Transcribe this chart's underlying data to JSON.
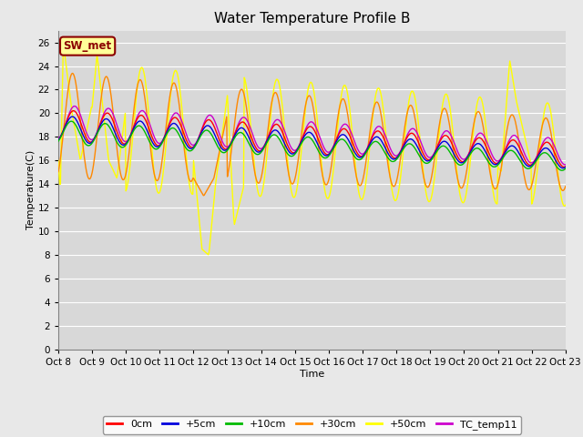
{
  "title": "Water Temperature Profile B",
  "xlabel": "Time",
  "ylabel": "Temperature(C)",
  "ylim": [
    0,
    27
  ],
  "yticks": [
    0,
    2,
    4,
    6,
    8,
    10,
    12,
    14,
    16,
    18,
    20,
    22,
    24,
    26
  ],
  "background_color": "#e8e8e8",
  "plot_bg_color": "#d8d8d8",
  "legend_label": "SW_met",
  "series_colors": {
    "0cm": "#ff0000",
    "+5cm": "#0000dd",
    "+10cm": "#00bb00",
    "+30cm": "#ff8800",
    "+50cm": "#ffff00",
    "TC_temp11": "#cc00cc"
  },
  "n_days": 15,
  "x_tick_labels": [
    "Oct 8",
    "Oct 9",
    "Oct 10",
    "Oct 11",
    "Oct 12",
    "Oct 13",
    "Oct 14",
    "Oct 15",
    "Oct 16",
    "Oct 17",
    "Oct 18",
    "Oct 19",
    "Oct 20",
    "Oct 21",
    "Oct 22",
    "Oct 23"
  ],
  "title_fontsize": 11,
  "axis_fontsize": 8,
  "tick_fontsize": 7.5
}
